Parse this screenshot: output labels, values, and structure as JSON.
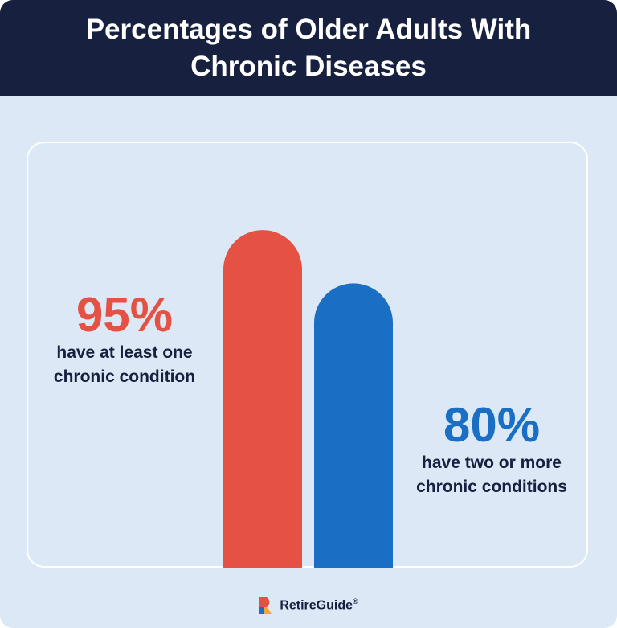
{
  "title": "Percentages of Older Adults With Chronic Diseases",
  "chart_data": {
    "type": "bar",
    "title": "Percentages of Older Adults With Chronic Diseases",
    "categories": [
      "have at least one chronic condition",
      "have two or more chronic conditions"
    ],
    "values": [
      95,
      80
    ],
    "value_labels": [
      "95%",
      "80%"
    ],
    "ylim": [
      0,
      100
    ],
    "colors": [
      "#e55142",
      "#1a6fc4"
    ],
    "grid": false,
    "legend": "none"
  },
  "stats": [
    {
      "percent": "95%",
      "line1": "have at least one",
      "line2": "chronic condition",
      "color": "#e55142"
    },
    {
      "percent": "80%",
      "line1": "have two or more",
      "line2": "chronic conditions",
      "color": "#1a6fc4"
    }
  ],
  "footer": {
    "brand": "RetireGuide",
    "mark": "®"
  },
  "colors": {
    "header_bg": "#17213f",
    "page_bg": "#dce8f5",
    "accent_red": "#e55142",
    "accent_blue": "#1a6fc4"
  }
}
